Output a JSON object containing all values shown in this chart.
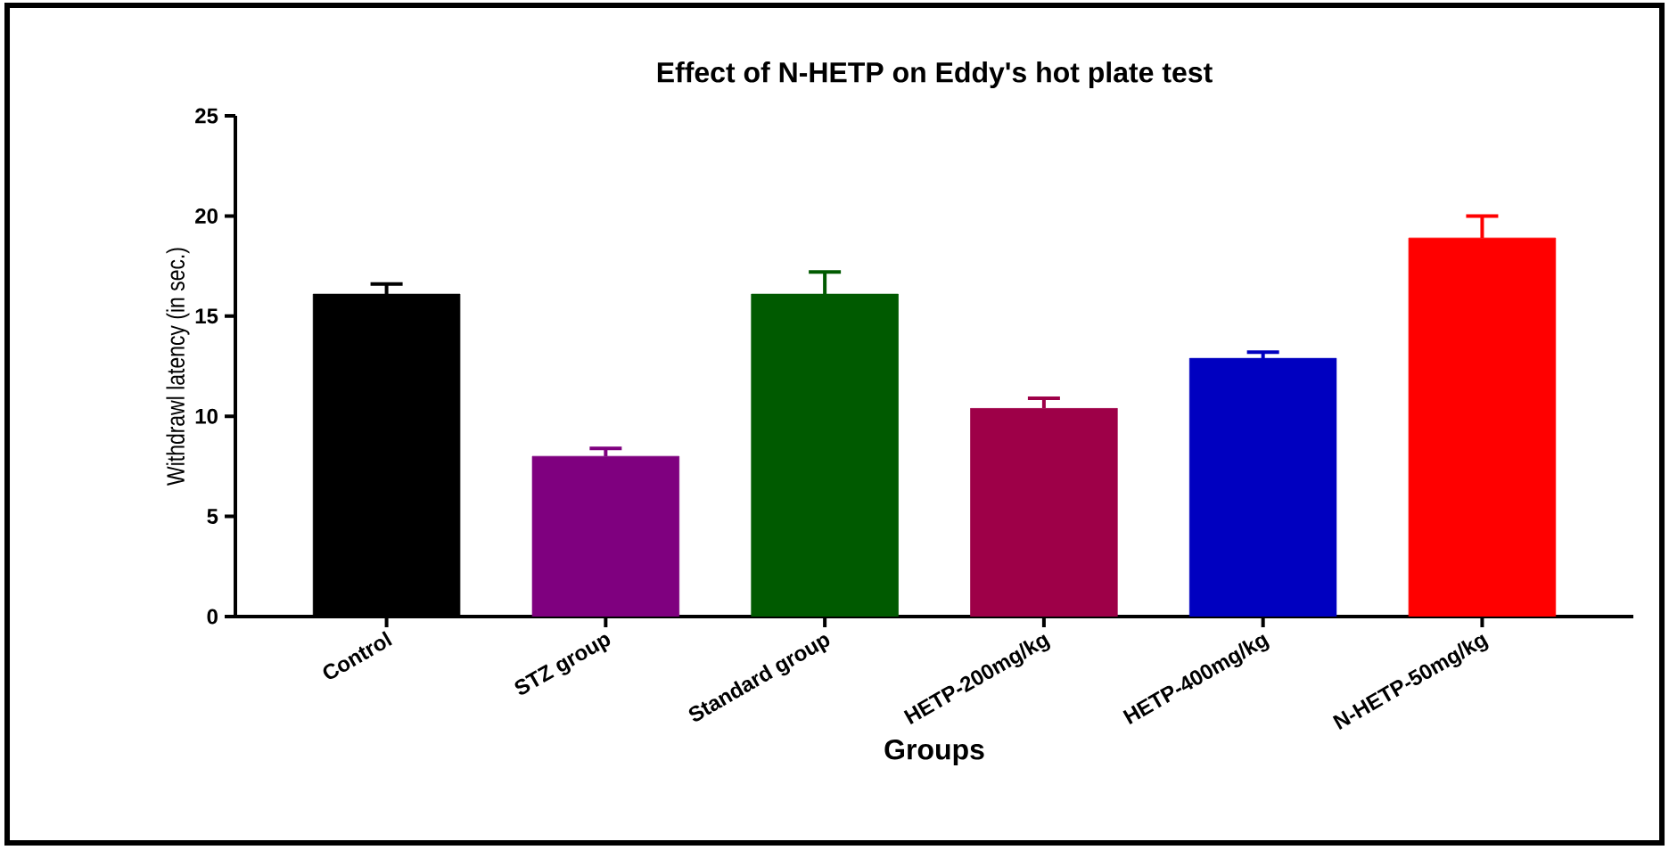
{
  "chart_data": {
    "type": "bar",
    "title": "Effect of N-HETP on Eddy's hot plate test",
    "xlabel": "Groups",
    "ylabel": "Withdrawl latency (in sec.)",
    "categories": [
      "Control",
      "STZ group",
      "Standard group",
      "HETP-200mg/kg",
      "HETP-400mg/kg",
      "N-HETP-50mg/kg"
    ],
    "values": [
      16.1,
      8.0,
      16.1,
      10.4,
      12.9,
      18.9
    ],
    "colors": [
      "#000000",
      "#7f007f",
      "#005a00",
      "#9e0048",
      "#0000c0",
      "#ff0000"
    ],
    "errors": [
      [
        16.1,
        16.6
      ],
      [
        8.0,
        8.4
      ],
      [
        16.1,
        17.2
      ],
      [
        10.4,
        10.9
      ],
      [
        12.9,
        13.2
      ],
      [
        18.9,
        20.0
      ]
    ],
    "ylim": [
      0,
      25
    ],
    "yticks": [
      0,
      5,
      10,
      15,
      20,
      25
    ],
    "grid": false
  }
}
